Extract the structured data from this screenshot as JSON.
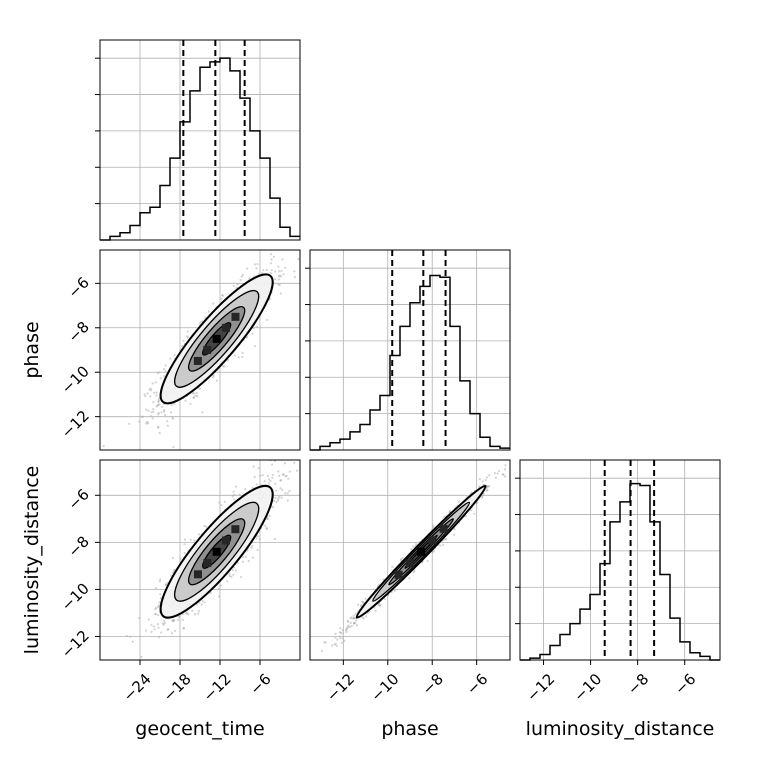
{
  "chart_data": {
    "type": "corner",
    "parameters": [
      "geocent_time",
      "phase",
      "luminosity_distance"
    ],
    "ranges": {
      "geocent_time": [
        -30,
        0
      ],
      "phase": [
        -13.5,
        -4.5
      ],
      "luminosity_distance": [
        -13.0,
        -4.5
      ]
    },
    "ticks": {
      "geocent_time": [
        -24,
        -18,
        -12,
        -6
      ],
      "phase": [
        -12,
        -10,
        -8,
        -6
      ],
      "luminosity_distance": [
        -12,
        -10,
        -8,
        -6
      ]
    },
    "tick_labels": {
      "geocent_time": [
        "−24",
        "−18",
        "−12",
        "−6"
      ],
      "phase": [
        "−12",
        "−10",
        "−8",
        "−6"
      ],
      "luminosity_distance": [
        "−12",
        "−10",
        "−8",
        "−6"
      ]
    },
    "quantiles": {
      "geocent_time": [
        -17.5,
        -12.7,
        -8.3
      ],
      "phase": [
        -9.8,
        -8.4,
        -7.4
      ],
      "luminosity_distance": [
        -9.4,
        -8.3,
        -7.3
      ]
    },
    "histograms": {
      "geocent_time": {
        "edges": [
          -30,
          -28.5,
          -27,
          -25.5,
          -24,
          -22.5,
          -21,
          -19.5,
          -18,
          -16.5,
          -15,
          -13.5,
          -12,
          -10.5,
          -9,
          -7.5,
          -6,
          -4.5,
          -3,
          -1.5,
          0
        ],
        "counts": [
          0.0,
          0.02,
          0.04,
          0.08,
          0.15,
          0.18,
          0.3,
          0.45,
          0.65,
          0.82,
          0.95,
          0.98,
          1.0,
          0.93,
          0.78,
          0.6,
          0.45,
          0.23,
          0.07,
          0.02
        ]
      },
      "phase": {
        "edges": [
          -13.5,
          -13.05,
          -12.6,
          -12.15,
          -11.7,
          -11.25,
          -10.8,
          -10.35,
          -9.9,
          -9.45,
          -9.0,
          -8.55,
          -8.1,
          -7.65,
          -7.2,
          -6.75,
          -6.3,
          -5.85,
          -5.4,
          -4.95,
          -4.5
        ],
        "counts": [
          0.0,
          0.02,
          0.04,
          0.06,
          0.1,
          0.14,
          0.22,
          0.3,
          0.52,
          0.68,
          0.81,
          0.9,
          0.96,
          0.95,
          0.68,
          0.38,
          0.2,
          0.07,
          0.02,
          0.01
        ]
      },
      "luminosity_distance": {
        "edges": [
          -13.0,
          -12.575,
          -12.15,
          -11.725,
          -11.3,
          -10.875,
          -10.45,
          -10.025,
          -9.6,
          -9.175,
          -8.75,
          -8.325,
          -7.9,
          -7.475,
          -7.05,
          -6.625,
          -6.2,
          -5.775,
          -5.35,
          -4.925,
          -4.5
        ],
        "counts": [
          0.0,
          0.01,
          0.03,
          0.08,
          0.14,
          0.2,
          0.28,
          0.36,
          0.53,
          0.76,
          0.87,
          0.97,
          0.96,
          0.76,
          0.47,
          0.23,
          0.1,
          0.04,
          0.02,
          0.0
        ]
      }
    },
    "hist_ylim": [
      0,
      1.1
    ],
    "correlations": {
      "phase|geocent_time": 0.88,
      "luminosity_distance|geocent_time": 0.87,
      "luminosity_distance|phase": 0.99
    },
    "means": {
      "geocent_time": -12.5,
      "phase": -8.5,
      "luminosity_distance": -8.4
    },
    "sds": {
      "geocent_time": 4.2,
      "phase": 1.45,
      "luminosity_distance": 1.4
    },
    "grid": true,
    "colors": {
      "lines": "#000000",
      "scatter": "#808080",
      "fill_levels": [
        "#f2f2f2",
        "#c8c8c8",
        "#8c8c8c",
        "#404040",
        "#000000"
      ]
    }
  }
}
